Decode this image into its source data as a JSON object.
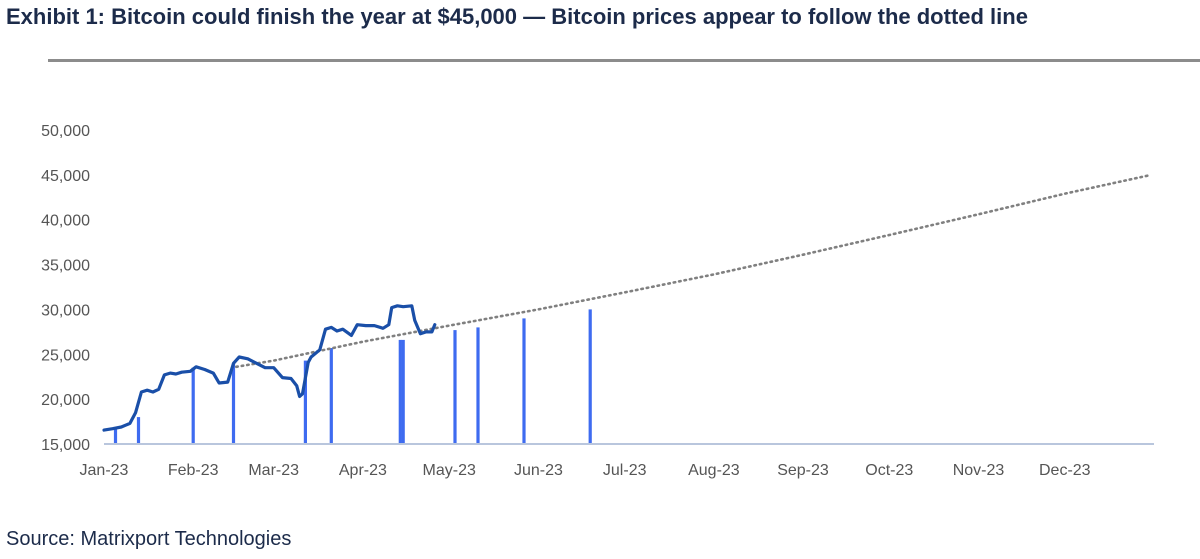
{
  "header": {
    "title": "Exhibit 1: Bitcoin could finish the year at $45,000 — Bitcoin prices appear to follow the dotted line"
  },
  "footer": {
    "source": "Source: Matrixport Technologies"
  },
  "colors": {
    "price_line": "#1a4fa8",
    "bars": "#3e6bf0",
    "trend": "#808080",
    "axis": "#b9c6dd",
    "text": "#1c2b4a",
    "tick_text": "#555555",
    "rule": "#8c8c8c"
  },
  "chart_data": {
    "type": "line",
    "title": "",
    "xlabel": "",
    "ylabel": "",
    "ylim": [
      15000,
      50000
    ],
    "yticks": [
      15000,
      20000,
      25000,
      30000,
      35000,
      40000,
      45000,
      50000
    ],
    "ytick_labels": [
      "15,000",
      "20,000",
      "25,000",
      "30,000",
      "35,000",
      "40,000",
      "45,000",
      "50,000"
    ],
    "xlim": [
      "2023-01-01",
      "2023-12-31"
    ],
    "xtick_labels": [
      "Jan-23",
      "Feb-23",
      "Mar-23",
      "Apr-23",
      "May-23",
      "Jun-23",
      "Jul-23",
      "Aug-23",
      "Sep-23",
      "Oct-23",
      "Nov-23",
      "Dec-23"
    ],
    "grid": false,
    "legend": "none",
    "series": [
      {
        "style": "solid",
        "points": [
          [
            "2023-01-01",
            16550
          ],
          [
            "2023-01-04",
            16700
          ],
          [
            "2023-01-07",
            16900
          ],
          [
            "2023-01-10",
            17300
          ],
          [
            "2023-01-12",
            18500
          ],
          [
            "2023-01-14",
            20800
          ],
          [
            "2023-01-16",
            21000
          ],
          [
            "2023-01-18",
            20800
          ],
          [
            "2023-01-20",
            21100
          ],
          [
            "2023-01-22",
            22700
          ],
          [
            "2023-01-24",
            22900
          ],
          [
            "2023-01-26",
            22800
          ],
          [
            "2023-01-28",
            23000
          ],
          [
            "2023-01-31",
            23100
          ],
          [
            "2023-02-02",
            23600
          ],
          [
            "2023-02-05",
            23300
          ],
          [
            "2023-02-08",
            22900
          ],
          [
            "2023-02-10",
            21800
          ],
          [
            "2023-02-13",
            21900
          ],
          [
            "2023-02-15",
            24000
          ],
          [
            "2023-02-17",
            24700
          ],
          [
            "2023-02-20",
            24500
          ],
          [
            "2023-02-23",
            24000
          ],
          [
            "2023-02-26",
            23500
          ],
          [
            "2023-03-01",
            23500
          ],
          [
            "2023-03-04",
            22400
          ],
          [
            "2023-03-07",
            22300
          ],
          [
            "2023-03-09",
            21500
          ],
          [
            "2023-03-10",
            20300
          ],
          [
            "2023-03-11",
            20600
          ],
          [
            "2023-03-13",
            24100
          ],
          [
            "2023-03-14",
            24700
          ],
          [
            "2023-03-17",
            25500
          ],
          [
            "2023-03-19",
            27800
          ],
          [
            "2023-03-21",
            28000
          ],
          [
            "2023-03-23",
            27600
          ],
          [
            "2023-03-25",
            27800
          ],
          [
            "2023-03-28",
            27100
          ],
          [
            "2023-03-30",
            28300
          ],
          [
            "2023-04-02",
            28200
          ],
          [
            "2023-04-05",
            28200
          ],
          [
            "2023-04-08",
            27900
          ],
          [
            "2023-04-10",
            28300
          ],
          [
            "2023-04-11",
            30200
          ],
          [
            "2023-04-13",
            30400
          ],
          [
            "2023-04-15",
            30300
          ],
          [
            "2023-04-18",
            30400
          ],
          [
            "2023-04-19",
            28800
          ],
          [
            "2023-04-21",
            27300
          ],
          [
            "2023-04-23",
            27500
          ],
          [
            "2023-04-25",
            27500
          ],
          [
            "2023-04-26",
            28300
          ]
        ]
      },
      {
        "style": "dotted",
        "points": [
          [
            "2023-02-16",
            23600
          ],
          [
            "2023-03-01",
            24300
          ],
          [
            "2023-04-01",
            26400
          ],
          [
            "2023-05-01",
            28200
          ],
          [
            "2023-06-01",
            30000
          ],
          [
            "2023-07-01",
            31900
          ],
          [
            "2023-08-01",
            33900
          ],
          [
            "2023-09-01",
            36100
          ],
          [
            "2023-10-01",
            38300
          ],
          [
            "2023-11-01",
            40600
          ],
          [
            "2023-12-01",
            42900
          ],
          [
            "2023-12-31",
            45000
          ]
        ]
      }
    ],
    "bars": [
      {
        "x": "2023-01-05",
        "value": 16800
      },
      {
        "x": "2023-01-13",
        "value": 18000
      },
      {
        "x": "2023-02-01",
        "value": 23500
      },
      {
        "x": "2023-02-15",
        "value": 24000
      },
      {
        "x": "2023-03-12",
        "value": 24300
      },
      {
        "x": "2023-03-21",
        "value": 25700
      },
      {
        "x": "2023-04-14",
        "value": 26600
      },
      {
        "x": "2023-04-15",
        "value": 26600
      },
      {
        "x": "2023-05-03",
        "value": 27700
      },
      {
        "x": "2023-05-11",
        "value": 28000
      },
      {
        "x": "2023-05-27",
        "value": 29000
      },
      {
        "x": "2023-06-19",
        "value": 30000
      }
    ]
  }
}
